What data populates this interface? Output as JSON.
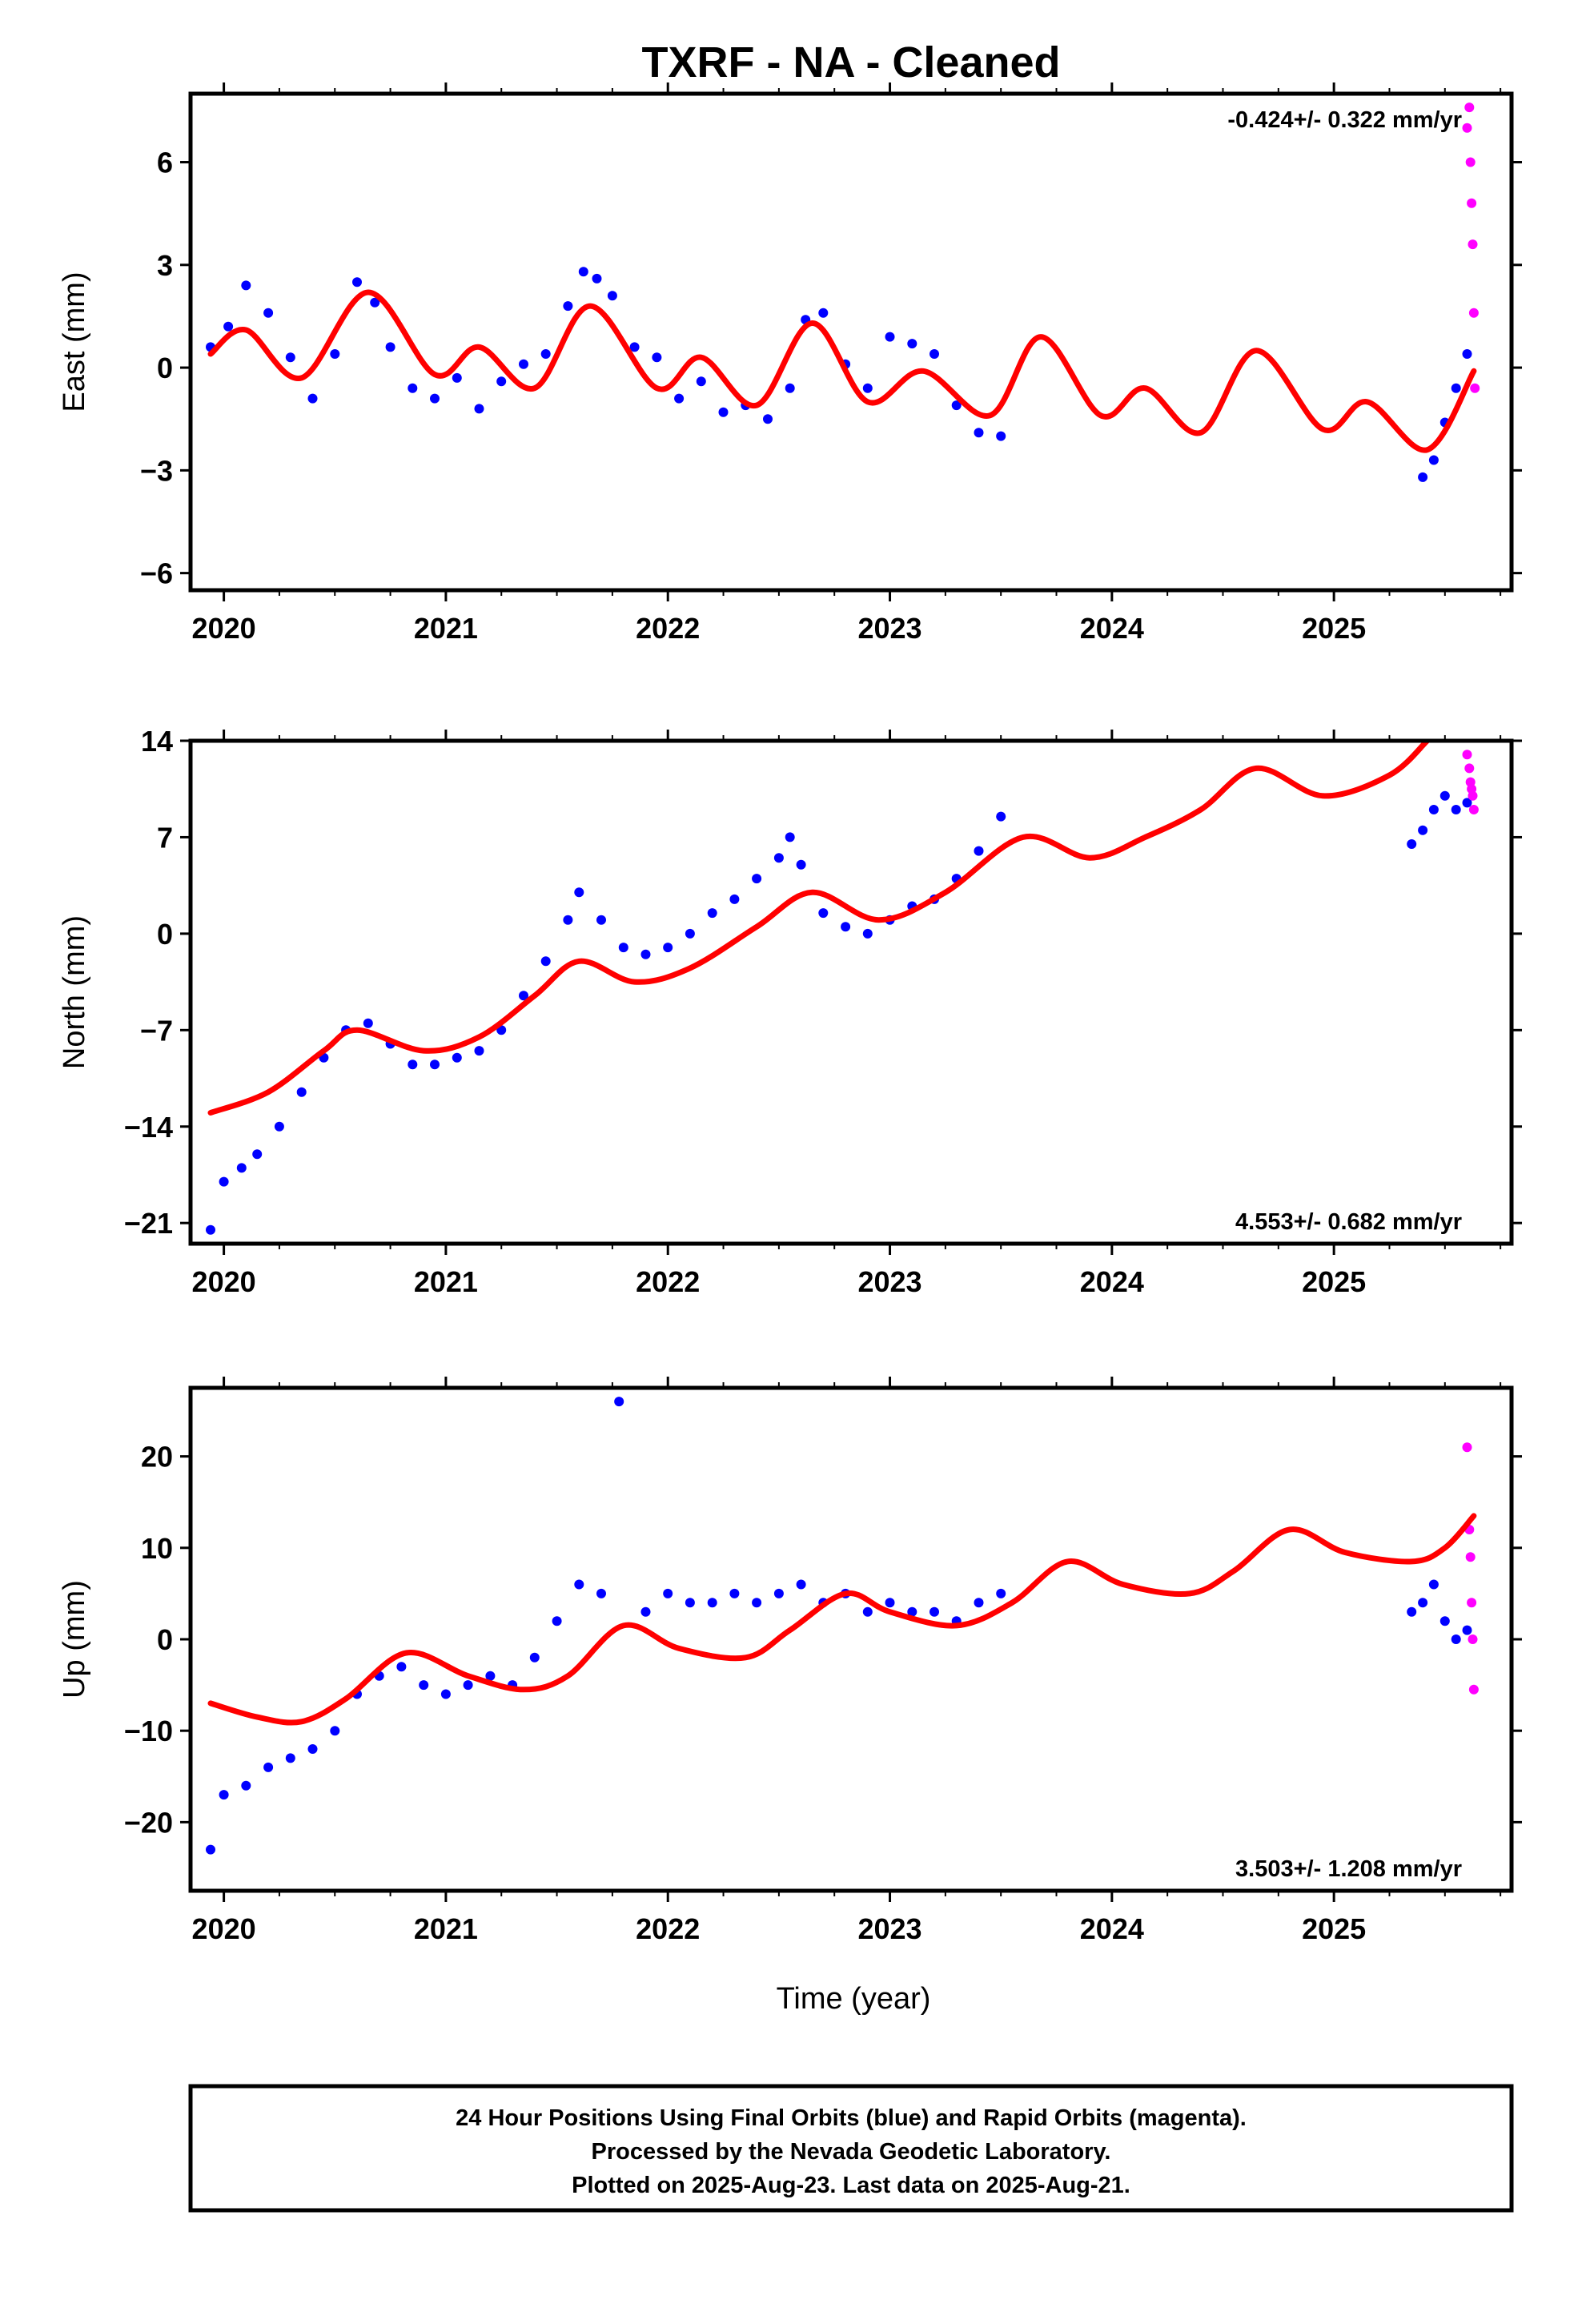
{
  "title": "TXRF  - NA - Cleaned",
  "xlabel": "Time (year)",
  "footer": {
    "line1": "24 Hour Positions Using Final Orbits (blue) and Rapid Orbits (magenta).",
    "line2": "Processed by the Nevada Geodetic Laboratory.",
    "line3": "Plotted on 2025-Aug-23. Last data on 2025-Aug-21."
  },
  "colors": {
    "final": "#0000ff",
    "rapid": "#ff00ff",
    "model": "#ff0000",
    "frame": "#000000"
  },
  "chart_data": [
    {
      "type": "scatter",
      "ylabel": "East (mm)",
      "rate": "-0.424+/- 0.322 mm/yr",
      "rate_position": "top-right",
      "xlim": [
        2019.85,
        2025.8
      ],
      "ylim": [
        -6.5,
        8.0
      ],
      "x_ticks": [
        2020,
        2021,
        2022,
        2023,
        2024,
        2025
      ],
      "y_ticks": [
        -6,
        -3,
        0,
        3,
        6
      ],
      "series": [
        {
          "role": "final",
          "x": [
            2019.94,
            2020.02,
            2020.1,
            2020.2,
            2020.3,
            2020.4,
            2020.5,
            2020.6,
            2020.68,
            2020.75,
            2020.85,
            2020.95,
            2021.05,
            2021.15,
            2021.25,
            2021.35,
            2021.45,
            2021.55,
            2021.62,
            2021.68,
            2021.75,
            2021.85,
            2021.95,
            2022.05,
            2022.15,
            2022.25,
            2022.35,
            2022.45,
            2022.55,
            2022.62,
            2022.7,
            2022.8,
            2022.9,
            2023.0,
            2023.1,
            2023.2,
            2023.3,
            2023.4,
            2023.5,
            2025.4,
            2025.45,
            2025.5,
            2025.55,
            2025.6
          ],
          "y": [
            0.6,
            1.2,
            2.4,
            1.6,
            0.3,
            -0.9,
            0.4,
            2.5,
            1.9,
            0.6,
            -0.6,
            -0.9,
            -0.3,
            -1.2,
            -0.4,
            0.1,
            0.4,
            1.8,
            2.8,
            2.6,
            2.1,
            0.6,
            0.3,
            -0.9,
            -0.4,
            -1.3,
            -1.1,
            -1.5,
            -0.6,
            1.4,
            1.6,
            0.1,
            -0.6,
            0.9,
            0.7,
            0.4,
            -1.1,
            -1.9,
            -2.0,
            -3.2,
            -2.7,
            -1.6,
            -0.6,
            0.4
          ]
        },
        {
          "role": "rapid",
          "x": [
            2025.6,
            2025.61,
            2025.615,
            2025.62,
            2025.625,
            2025.63,
            2025.635
          ],
          "y": [
            7.0,
            7.6,
            6.0,
            4.8,
            3.6,
            1.6,
            -0.6
          ]
        },
        {
          "role": "model",
          "x": [
            2019.94,
            2020.1,
            2020.35,
            2020.65,
            2020.95,
            2021.15,
            2021.4,
            2021.65,
            2021.95,
            2022.15,
            2022.4,
            2022.65,
            2022.9,
            2023.15,
            2023.45,
            2023.68,
            2023.95,
            2024.15,
            2024.4,
            2024.65,
            2024.95,
            2025.15,
            2025.42,
            2025.63
          ],
          "y": [
            0.4,
            1.1,
            -0.3,
            2.2,
            -0.2,
            0.6,
            -0.6,
            1.8,
            -0.6,
            0.3,
            -1.1,
            1.3,
            -1.0,
            -0.1,
            -1.4,
            0.9,
            -1.4,
            -0.6,
            -1.9,
            0.5,
            -1.8,
            -1.0,
            -2.4,
            -0.1
          ]
        }
      ]
    },
    {
      "type": "scatter",
      "ylabel": "North (mm)",
      "rate": "4.553+/- 0.682 mm/yr",
      "rate_position": "bottom-right",
      "xlim": [
        2019.85,
        2025.8
      ],
      "ylim": [
        -22.5,
        14.0
      ],
      "x_ticks": [
        2020,
        2021,
        2022,
        2023,
        2024,
        2025
      ],
      "y_ticks": [
        -21,
        -14,
        -7,
        0,
        7,
        14
      ],
      "series": [
        {
          "role": "final",
          "x": [
            2019.94,
            2020.0,
            2020.08,
            2020.15,
            2020.25,
            2020.35,
            2020.45,
            2020.55,
            2020.65,
            2020.75,
            2020.85,
            2020.95,
            2021.05,
            2021.15,
            2021.25,
            2021.35,
            2021.45,
            2021.55,
            2021.6,
            2021.7,
            2021.8,
            2021.9,
            2022.0,
            2022.1,
            2022.2,
            2022.3,
            2022.4,
            2022.5,
            2022.55,
            2022.6,
            2022.7,
            2022.8,
            2022.9,
            2023.0,
            2023.1,
            2023.2,
            2023.3,
            2023.4,
            2023.5,
            2025.35,
            2025.4,
            2025.45,
            2025.5,
            2025.55,
            2025.6
          ],
          "y": [
            -21.5,
            -18.0,
            -17.0,
            -16.0,
            -14.0,
            -11.5,
            -9.0,
            -7.0,
            -6.5,
            -8.0,
            -9.5,
            -9.5,
            -9.0,
            -8.5,
            -7.0,
            -4.5,
            -2.0,
            1.0,
            3.0,
            1.0,
            -1.0,
            -1.5,
            -1.0,
            0.0,
            1.5,
            2.5,
            4.0,
            5.5,
            7.0,
            5.0,
            1.5,
            0.5,
            0.0,
            1.0,
            2.0,
            2.5,
            4.0,
            6.0,
            8.5,
            6.5,
            7.5,
            9.0,
            10.0,
            9.0,
            9.5
          ]
        },
        {
          "role": "rapid",
          "x": [
            2025.6,
            2025.61,
            2025.615,
            2025.62,
            2025.625,
            2025.63
          ],
          "y": [
            13.0,
            12.0,
            11.0,
            10.5,
            10.0,
            9.0
          ]
        },
        {
          "role": "model",
          "x": [
            2019.94,
            2020.2,
            2020.45,
            2020.6,
            2020.9,
            2021.15,
            2021.4,
            2021.6,
            2021.85,
            2022.1,
            2022.4,
            2022.65,
            2022.95,
            2023.25,
            2023.6,
            2023.9,
            2024.15,
            2024.4,
            2024.65,
            2024.95,
            2025.25,
            2025.42
          ],
          "y": [
            -13.0,
            -11.5,
            -8.5,
            -7.0,
            -8.5,
            -7.5,
            -4.5,
            -2.0,
            -3.5,
            -2.5,
            0.5,
            3.0,
            1.0,
            3.0,
            7.0,
            5.5,
            7.0,
            9.0,
            12.0,
            10.0,
            11.5,
            14.0
          ]
        }
      ]
    },
    {
      "type": "scatter",
      "ylabel": "Up (mm)",
      "rate": "3.503+/- 1.208 mm/yr",
      "rate_position": "bottom-right",
      "xlim": [
        2019.85,
        2025.8
      ],
      "ylim": [
        -27.5,
        27.5
      ],
      "x_ticks": [
        2020,
        2021,
        2022,
        2023,
        2024,
        2025
      ],
      "y_ticks": [
        -20,
        -10,
        0,
        10,
        20
      ],
      "series": [
        {
          "role": "final",
          "x": [
            2019.94,
            2020.0,
            2020.1,
            2020.2,
            2020.3,
            2020.4,
            2020.5,
            2020.6,
            2020.7,
            2020.8,
            2020.9,
            2021.0,
            2021.1,
            2021.2,
            2021.3,
            2021.4,
            2021.5,
            2021.6,
            2021.7,
            2021.78,
            2021.9,
            2022.0,
            2022.1,
            2022.2,
            2022.3,
            2022.4,
            2022.5,
            2022.6,
            2022.7,
            2022.8,
            2022.9,
            2023.0,
            2023.1,
            2023.2,
            2023.3,
            2023.4,
            2023.5,
            2025.35,
            2025.4,
            2025.45,
            2025.5,
            2025.55,
            2025.6
          ],
          "y": [
            -23.0,
            -17.0,
            -16.0,
            -14.0,
            -13.0,
            -12.0,
            -10.0,
            -6.0,
            -4.0,
            -3.0,
            -5.0,
            -6.0,
            -5.0,
            -4.0,
            -5.0,
            -2.0,
            2.0,
            6.0,
            5.0,
            26.0,
            3.0,
            5.0,
            4.0,
            4.0,
            5.0,
            4.0,
            5.0,
            6.0,
            4.0,
            5.0,
            3.0,
            4.0,
            3.0,
            3.0,
            2.0,
            4.0,
            5.0,
            3.0,
            4.0,
            6.0,
            2.0,
            0.0,
            1.0
          ]
        },
        {
          "role": "rapid",
          "x": [
            2025.6,
            2025.61,
            2025.615,
            2025.62,
            2025.625,
            2025.63
          ],
          "y": [
            21.0,
            12.0,
            9.0,
            4.0,
            0.0,
            -5.5
          ]
        },
        {
          "role": "model",
          "x": [
            2019.94,
            2020.15,
            2020.35,
            2020.55,
            2020.82,
            2021.1,
            2021.35,
            2021.55,
            2021.8,
            2022.05,
            2022.35,
            2022.55,
            2022.8,
            2023.0,
            2023.3,
            2023.55,
            2023.8,
            2024.05,
            2024.35,
            2024.55,
            2024.8,
            2025.05,
            2025.35,
            2025.5,
            2025.63
          ],
          "y": [
            -7.0,
            -8.5,
            -9.0,
            -6.5,
            -1.5,
            -4.0,
            -5.5,
            -4.0,
            1.5,
            -1.0,
            -2.0,
            1.0,
            5.0,
            3.0,
            1.5,
            4.0,
            8.5,
            6.0,
            5.0,
            7.5,
            12.0,
            9.5,
            8.5,
            10.0,
            13.5
          ]
        }
      ]
    }
  ]
}
